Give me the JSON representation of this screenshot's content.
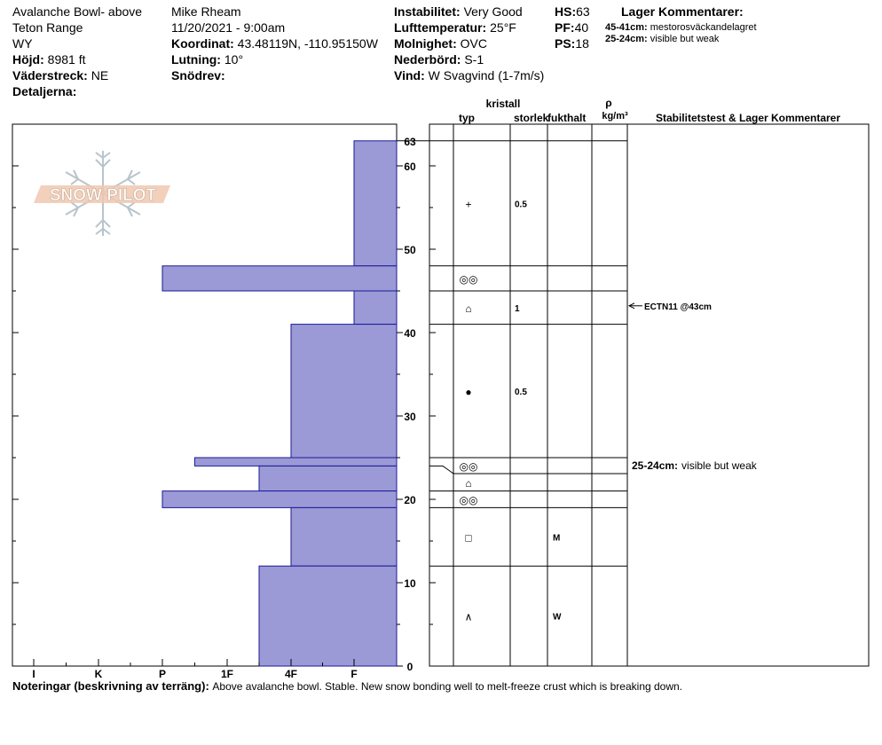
{
  "header": {
    "location": "Avalanche Bowl- above",
    "range": "Teton Range",
    "state": "WY",
    "elevation_label": "Höjd:",
    "elevation": "8981 ft",
    "aspect_label": "Väderstreck:",
    "aspect": "NE",
    "details_label": "Detaljerna:",
    "observer": "Mike Rheam",
    "datetime": "11/20/2021 - 9:00am",
    "coord_label": "Koordinat:",
    "coord": "43.48119N, -110.95150W",
    "slope_label": "Lutning:",
    "slope": "10°",
    "drift_label": "Snödrev:",
    "drift": "",
    "stability_label": "Instabilitet:",
    "stability": "Very Good",
    "airtemp_label": "Lufttemperatur:",
    "airtemp": "25°F",
    "sky_label": "Molnighet:",
    "sky": "OVC",
    "precip_label": "Nederbörd:",
    "precip": "S-1",
    "wind_label": "Vind:",
    "wind": "W Svagvind (1-7m/s)",
    "hs_label": "HS:",
    "hs": "63",
    "pf_label": "PF:",
    "pf": "40",
    "ps_label": "PS:",
    "ps": "18",
    "layer_comments_title": "Lager Kommentarer:",
    "layer_comments": [
      {
        "depth": "45-41cm:",
        "text": "mestorosväckandelagret"
      },
      {
        "depth": "25-24cm:",
        "text": "visible but weak"
      }
    ]
  },
  "logo_text": "SNOW PILOT",
  "columns": {
    "crystal": "kristall",
    "type": "typ",
    "size": "storlek",
    "moisture": "fukthalt",
    "rho": "ρ",
    "density_unit": "kg/m³",
    "stability": "Stabilitetstest & Lager Kommentarer"
  },
  "chart_data": {
    "type": "bar",
    "orientation": "horizontal",
    "title": "",
    "ylabel": "",
    "ylim": [
      0,
      65
    ],
    "y_ticks": [
      0,
      10,
      20,
      30,
      40,
      50,
      60
    ],
    "top_label": "63",
    "hardness_scale": [
      "I",
      "K",
      "P",
      "1F",
      "4F",
      "F"
    ],
    "hardness_values": {
      "F": 1,
      "4F": 2,
      "1F": 3,
      "P": 4,
      "K": 5,
      "I": 6
    },
    "layers": [
      {
        "bottom": 48,
        "top": 63,
        "hardness": 1,
        "type": "+",
        "size": "0.5",
        "moisture": ""
      },
      {
        "bottom": 45,
        "top": 48,
        "hardness": 4,
        "type": "◎◎",
        "size": "",
        "moisture": ""
      },
      {
        "bottom": 41,
        "top": 45,
        "hardness": 1,
        "type": "⌂",
        "size": "1",
        "moisture": ""
      },
      {
        "bottom": 25,
        "top": 41,
        "hardness": 2,
        "type": "●",
        "size": "0.5",
        "moisture": ""
      },
      {
        "bottom": 24,
        "top": 25,
        "hardness": 3.5,
        "type": "◎◎",
        "size": "",
        "moisture": ""
      },
      {
        "bottom": 21,
        "top": 24,
        "hardness": 2.5,
        "type": "⌂",
        "size": "",
        "moisture": ""
      },
      {
        "bottom": 19,
        "top": 21,
        "hardness": 4,
        "type": "◎◎",
        "size": "",
        "moisture": ""
      },
      {
        "bottom": 12,
        "top": 19,
        "hardness": 2,
        "type": "□",
        "size": "",
        "moisture": "M"
      },
      {
        "bottom": 0,
        "top": 12,
        "hardness": 2.5,
        "type": "∧",
        "size": "",
        "moisture": "W"
      }
    ],
    "tests": [
      {
        "depth": 43,
        "text": "ECTN11 @43cm"
      }
    ],
    "comments": [
      {
        "depth": 24.5,
        "label": "25-24cm:",
        "text": "visible but weak"
      }
    ]
  },
  "footer": {
    "label": "Noteringar (beskrivning av terräng):",
    "text": "Above avalanche bowl. Stable. New snow bonding well to melt-freeze crust which is breaking down."
  }
}
